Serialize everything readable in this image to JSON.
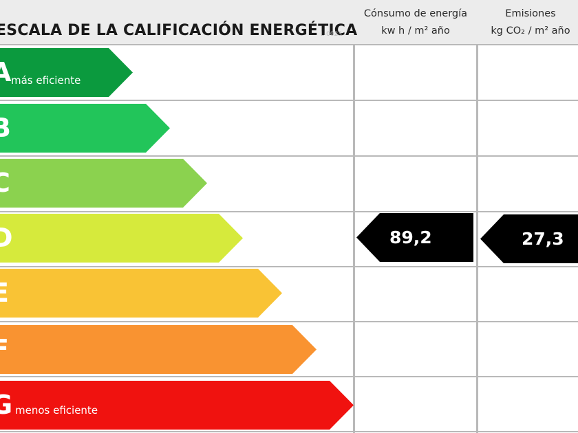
{
  "header": {
    "title": "ESCALA DE LA CALIFICACIÓN ENERGÉTICA",
    "code": "L-0023"
  },
  "columns": {
    "energy": {
      "line1": "Cónsumo de energía",
      "line2": "kw h / m² año"
    },
    "emissions": {
      "line1": "Emisiones",
      "line2": "kg CO₂ / m² año"
    }
  },
  "ratings": [
    {
      "letter": "A",
      "note": "más eficiente",
      "color": "#0b9a3e"
    },
    {
      "letter": "B",
      "note": "",
      "color": "#22c55a"
    },
    {
      "letter": "C",
      "note": "",
      "color": "#8bd24f"
    },
    {
      "letter": "D",
      "note": "",
      "color": "#d6ea3c"
    },
    {
      "letter": "E",
      "note": "",
      "color": "#f9c335"
    },
    {
      "letter": "F",
      "note": "",
      "color": "#f99331"
    },
    {
      "letter": "G",
      "note": "menos eficiente",
      "color": "#f0120f"
    }
  ],
  "current": {
    "rating": "D",
    "energy_value": "89,2",
    "emissions_value": "27,3",
    "marker_color": "#000000"
  }
}
